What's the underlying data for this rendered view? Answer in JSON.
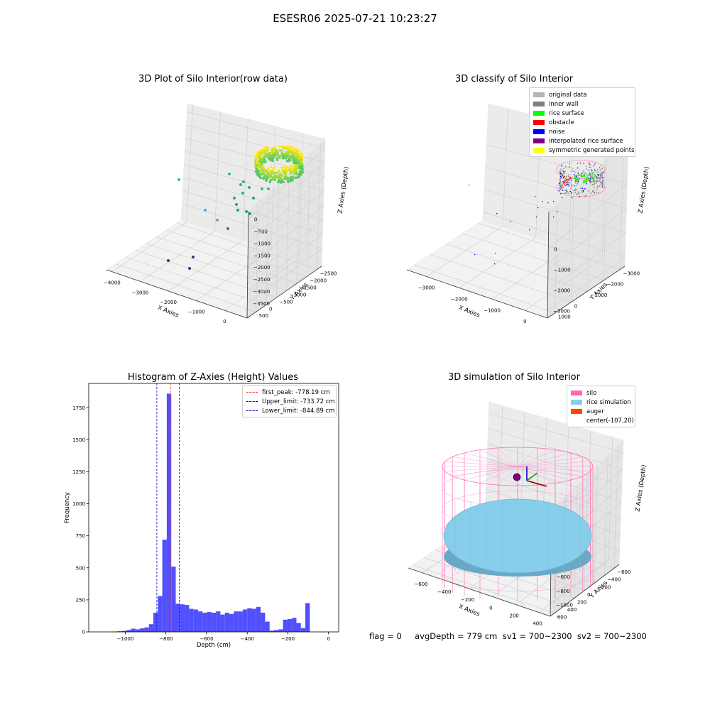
{
  "suptitle": "ESESR06 2025-07-21 10:23:27",
  "footer": "flag = 0     avgDepth = 779 cm  sv1 = 700~2300  sv2 = 700~2300",
  "chart_data": [
    {
      "type": "scatter",
      "title": "3D Plot of Silo Interior(row data)",
      "xlabel": "X Axies",
      "ylabel": "Y Axies",
      "zlabel": "Z Axies (Depth)",
      "x_ticks": [
        "−4000",
        "−3000",
        "−2000",
        "−1000",
        "0"
      ],
      "y_ticks": [
        "500",
        "0",
        "−500",
        "−1000",
        "−1500",
        "−2000",
        "−2500"
      ],
      "z_ticks": [
        "0",
        "−500",
        "−1000",
        "−1500",
        "−2000",
        "−2500",
        "−3000",
        "−3500"
      ],
      "colormap": "viridis (colored by depth)"
    },
    {
      "type": "scatter",
      "title": "3D classify of Silo Interior",
      "xlabel": "X Axies",
      "ylabel": "Y Axies",
      "zlabel": "Z Axies (Depth)",
      "x_ticks": [
        "−3000",
        "−2000",
        "−1000",
        "0"
      ],
      "y_ticks": [
        "1000",
        "0",
        "−1000",
        "−2000",
        "−3000"
      ],
      "z_ticks": [
        "0",
        "−1000",
        "−2000",
        "−3000"
      ],
      "legend": [
        {
          "label": "original data",
          "color": "#b4b4b4"
        },
        {
          "label": "inner wall",
          "color": "#808080"
        },
        {
          "label": "rice surface",
          "color": "#00ff00"
        },
        {
          "label": "obstacle",
          "color": "#ff0000"
        },
        {
          "label": "noise",
          "color": "#0000ff"
        },
        {
          "label": "interpolated rice surface",
          "color": "#800080"
        },
        {
          "label": "symmetric generated points",
          "color": "#ffff00"
        }
      ]
    },
    {
      "type": "bar",
      "title": "Histogram of Z-Axies (Height) Values",
      "xlabel": "Depth (cm)",
      "ylabel": "Frequency",
      "xlim": [
        -1180,
        50
      ],
      "ylim": [
        0,
        1940
      ],
      "x_ticks": [
        -1000,
        -800,
        -600,
        -400,
        -200,
        0
      ],
      "y_ticks": [
        0,
        250,
        500,
        750,
        1000,
        1250,
        1500,
        1750
      ],
      "bar_color": "#5050ff",
      "bin_width": 22,
      "bin_starts": [
        -1060,
        -1038,
        -1016,
        -994,
        -972,
        -950,
        -928,
        -906,
        -884,
        -862,
        -840,
        -818,
        -796,
        -774,
        -752,
        -730,
        -708,
        -686,
        -664,
        -642,
        -620,
        -598,
        -576,
        -554,
        -532,
        -510,
        -488,
        -466,
        -444,
        -422,
        -400,
        -378,
        -356,
        -334,
        -312,
        -290,
        -268,
        -246,
        -224,
        -202,
        -180,
        -158,
        -136,
        -114,
        -92,
        -70,
        -48,
        -26,
        -4
      ],
      "values": [
        3,
        5,
        8,
        15,
        25,
        20,
        28,
        35,
        60,
        150,
        280,
        720,
        1860,
        510,
        220,
        215,
        210,
        180,
        175,
        160,
        150,
        155,
        150,
        160,
        135,
        150,
        140,
        160,
        160,
        175,
        185,
        180,
        195,
        150,
        80,
        10,
        15,
        20,
        95,
        100,
        110,
        70,
        30,
        225,
        0,
        0,
        0,
        0,
        0
      ],
      "reference_lines": [
        {
          "label": "first_peak: -778.19 cm",
          "value": -778.19,
          "color": "#ff3030"
        },
        {
          "label": "Upper_limit: -733.72 cm",
          "value": -733.72,
          "color": "#0000cc"
        },
        {
          "label": "Lower_limit: -844.89 cm",
          "value": -844.89,
          "color": "#0000cc"
        }
      ]
    },
    {
      "type": "scatter",
      "title": "3D simulation of Silo Interior",
      "xlabel": "X Axies",
      "ylabel": "Y Axies",
      "zlabel": "Z Axies (Depth)",
      "x_ticks": [
        "−600",
        "−400",
        "−200",
        "0",
        "200",
        "400"
      ],
      "y_ticks": [
        "600",
        "400",
        "200",
        "0",
        "−200",
        "−400",
        "−600"
      ],
      "z_ticks": [
        "200",
        "0",
        "−200",
        "−400",
        "−600",
        "−800",
        "−1000"
      ],
      "legend": [
        {
          "label": "silo",
          "color": "#ff69b4"
        },
        {
          "label": "rice simulation",
          "color": "#87ceeb"
        },
        {
          "label": "auger",
          "color": "#ff4500"
        },
        {
          "label": "center(-107,20)",
          "color": ""
        }
      ]
    }
  ]
}
